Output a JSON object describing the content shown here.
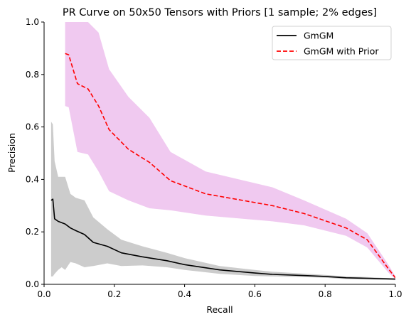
{
  "chart_data": {
    "type": "line",
    "title": "PR Curve on 50x50 Tensors with Priors [1 sample; 2% edges]",
    "xlabel": "Recall",
    "ylabel": "Precision",
    "xlim": [
      0,
      1
    ],
    "ylim": [
      0,
      1
    ],
    "xticks": [
      0,
      0.2,
      0.4,
      0.6,
      0.8,
      1.0
    ],
    "xtick_labels": [
      "0.0",
      "0.2",
      "0.4",
      "0.6",
      "0.8",
      "1.0"
    ],
    "yticks": [
      0,
      0.2,
      0.4,
      0.6,
      0.8,
      1.0
    ],
    "ytick_labels": [
      "0.0",
      "0.2",
      "0.4",
      "0.6",
      "0.8",
      "1.0"
    ],
    "grid": false,
    "legend_position": "top-right",
    "series": [
      {
        "name": "GmGM",
        "color": "#000000",
        "style": "solid",
        "band_color": "#cccccc",
        "x": [
          0.02,
          0.025,
          0.03,
          0.04,
          0.05,
          0.06,
          0.075,
          0.09,
          0.115,
          0.14,
          0.18,
          0.22,
          0.28,
          0.35,
          0.4,
          0.5,
          0.6,
          0.65,
          0.75,
          0.8,
          0.86,
          0.92,
          1.0
        ],
        "y": [
          0.32,
          0.325,
          0.25,
          0.24,
          0.235,
          0.23,
          0.215,
          0.205,
          0.19,
          0.16,
          0.145,
          0.12,
          0.105,
          0.09,
          0.075,
          0.055,
          0.043,
          0.038,
          0.033,
          0.03,
          0.025,
          0.023,
          0.02
        ],
        "band_upper": [
          0.62,
          0.61,
          0.47,
          0.41,
          0.41,
          0.41,
          0.345,
          0.33,
          0.32,
          0.255,
          0.21,
          0.17,
          0.145,
          0.12,
          0.1,
          0.07,
          0.055,
          0.048,
          0.04,
          0.036,
          0.03,
          0.028,
          0.022
        ],
        "band_lower": [
          0.03,
          0.03,
          0.04,
          0.055,
          0.065,
          0.055,
          0.085,
          0.08,
          0.065,
          0.07,
          0.08,
          0.07,
          0.072,
          0.065,
          0.055,
          0.04,
          0.032,
          0.03,
          0.027,
          0.025,
          0.02,
          0.018,
          0.016
        ]
      },
      {
        "name": "GmGM with Prior",
        "color": "#ff0000",
        "style": "dashed",
        "band_color": "#f0c9f0",
        "x": [
          0.06,
          0.07,
          0.095,
          0.125,
          0.155,
          0.185,
          0.24,
          0.3,
          0.36,
          0.46,
          0.65,
          0.74,
          0.86,
          0.92,
          0.98,
          1.0
        ],
        "y": [
          0.88,
          0.875,
          0.765,
          0.745,
          0.68,
          0.59,
          0.515,
          0.465,
          0.395,
          0.345,
          0.3,
          0.27,
          0.215,
          0.17,
          0.06,
          0.025
        ],
        "band_upper": [
          1.0,
          1.0,
          1.0,
          1.0,
          0.96,
          0.82,
          0.715,
          0.635,
          0.505,
          0.43,
          0.37,
          0.32,
          0.25,
          0.195,
          0.075,
          0.03
        ],
        "band_lower": [
          0.68,
          0.675,
          0.505,
          0.495,
          0.43,
          0.355,
          0.32,
          0.29,
          0.282,
          0.262,
          0.24,
          0.225,
          0.185,
          0.14,
          0.045,
          0.02
        ]
      }
    ]
  }
}
